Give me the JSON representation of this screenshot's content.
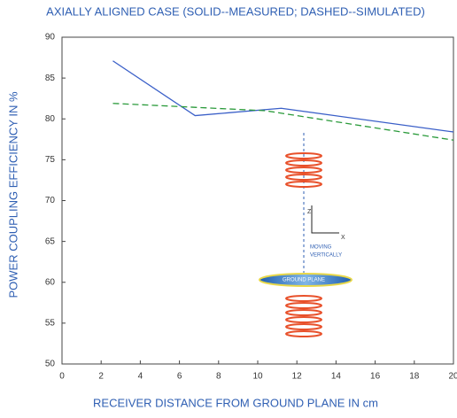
{
  "chart_data": {
    "type": "line",
    "title": "AXIALLY ALIGNED CASE (SOLID--MEASURED; DASHED--SIMULATED)",
    "x_label": "RECEIVER DISTANCE FROM GROUND PLANE IN cm",
    "y_label": "POWER COUPLING EFFICIENCY IN %",
    "series": [
      {
        "color": "#3a5fc8",
        "style": "solid",
        "x": [
          2.6,
          6.8,
          11.2,
          20
        ],
        "values": [
          87.1,
          80.4,
          81.3,
          78.4
        ]
      },
      {
        "color": "#2a9a3a",
        "style": "dashed",
        "x": [
          2.6,
          10.4,
          20
        ],
        "values": [
          81.9,
          81.0,
          77.4
        ]
      }
    ],
    "xlim": [
      0,
      20
    ],
    "xticks": [
      0,
      2,
      4,
      6,
      8,
      10,
      12,
      14,
      16,
      18,
      20
    ],
    "ylim": [
      50,
      90
    ],
    "yticks": [
      50,
      55,
      60,
      65,
      70,
      75,
      80,
      85,
      90
    ],
    "annotations": [
      "Z",
      "X",
      "MOVING",
      "VERTICALLY",
      "GROUND PLANE"
    ]
  }
}
